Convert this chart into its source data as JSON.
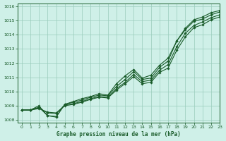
{
  "xlabel": "Graphe pression niveau de la mer (hPa)",
  "bg_color": "#cff0e8",
  "grid_color": "#99ccbb",
  "line_color": "#1a5c2a",
  "marker_color": "#1a5c2a",
  "xlim": [
    -0.5,
    23
  ],
  "ylim": [
    1007.8,
    1016.2
  ],
  "yticks": [
    1008,
    1009,
    1010,
    1011,
    1012,
    1013,
    1014,
    1015,
    1016
  ],
  "xticks": [
    0,
    1,
    2,
    3,
    4,
    5,
    6,
    7,
    8,
    9,
    10,
    11,
    12,
    13,
    14,
    15,
    16,
    17,
    18,
    19,
    20,
    21,
    22,
    23
  ],
  "series": [
    [
      1008.7,
      1008.7,
      1008.8,
      1008.55,
      1008.5,
      1009.0,
      1009.1,
      1009.25,
      1009.45,
      1009.6,
      1009.55,
      1010.1,
      1010.55,
      1011.05,
      1010.55,
      1010.65,
      1011.35,
      1011.65,
      1012.9,
      1013.85,
      1014.5,
      1014.7,
      1015.05,
      1015.25
    ],
    [
      1008.7,
      1008.7,
      1008.85,
      1008.5,
      1008.45,
      1009.05,
      1009.15,
      1009.3,
      1009.5,
      1009.65,
      1009.6,
      1010.2,
      1010.65,
      1011.2,
      1010.7,
      1010.8,
      1011.5,
      1011.9,
      1013.15,
      1014.1,
      1014.65,
      1014.9,
      1015.2,
      1015.4
    ],
    [
      1008.7,
      1008.7,
      1008.9,
      1008.3,
      1008.25,
      1009.1,
      1009.25,
      1009.4,
      1009.6,
      1009.75,
      1009.7,
      1010.35,
      1010.85,
      1011.4,
      1010.85,
      1010.95,
      1011.7,
      1012.15,
      1013.55,
      1014.35,
      1014.95,
      1015.1,
      1015.4,
      1015.6
    ],
    [
      1008.7,
      1008.7,
      1009.0,
      1008.3,
      1008.2,
      1009.1,
      1009.3,
      1009.5,
      1009.65,
      1009.85,
      1009.75,
      1010.55,
      1011.1,
      1011.55,
      1010.95,
      1011.15,
      1011.85,
      1012.35,
      1013.55,
      1014.45,
      1015.05,
      1015.25,
      1015.55,
      1015.7
    ]
  ]
}
